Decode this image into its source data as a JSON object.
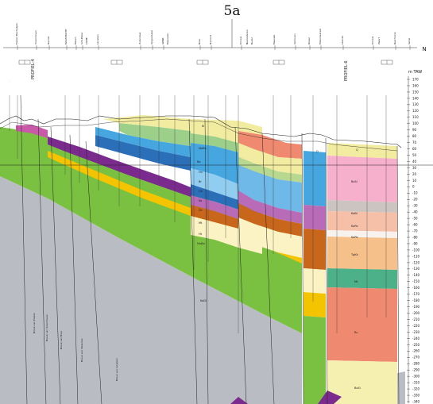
{
  "figure": {
    "title": "5a",
    "north_label": "N",
    "unit_label": "m TAW",
    "scale_ticks": [
      "170",
      "160",
      "150",
      "140",
      "130",
      "120",
      "110",
      "100",
      "90",
      "80",
      "70",
      "60",
      "50",
      "40",
      "30",
      "20",
      "10",
      "0",
      "-10",
      "-20",
      "-30",
      "-40",
      "-50",
      "-60",
      "-70",
      "-80",
      "-90",
      "-100",
      "-110",
      "-120",
      "-130",
      "-140",
      "-150",
      "-160",
      "-170",
      "-180",
      "-190",
      "-200",
      "-210",
      "-220",
      "-230",
      "-240",
      "-250",
      "-260",
      "-270",
      "-280",
      "-290",
      "-300",
      "-310",
      "-320",
      "-330",
      "-340"
    ],
    "top_labels": [
      "Eisden Mechelgen",
      "Vroenhoven",
      "Riemst",
      "MAASTRICHT",
      "Mesch",
      "Sint-Pieter",
      "LIXHE",
      "Lanaken",
      "Zutendaal",
      "Opglabbeek",
      "GENK",
      "Meeuwen",
      "Bree",
      "Hamont",
      "Kinrooi",
      "Neeroeteren",
      "Budel",
      "Maaseik",
      "Ophoven",
      "Dilsen",
      "Molenbeersel",
      "Leende",
      "Kinrooi",
      "Weert",
      "Roermond",
      "Venlo"
    ],
    "profile_labels": [
      "PROFIEL-4",
      "PROFIEL-6"
    ],
    "well_labels": [
      "Breuk van Eisden",
      "Breuk van Vroenhoven",
      "Breuk van Bree",
      "Breuk van Waterloo",
      "Breuk van Lanaken"
    ],
    "layer_codes": [
      "Kl",
      "MaRe",
      "Ba",
      "Hn",
      "Br",
      "Ge",
      "Ko",
      "Ze",
      "Mt",
      "Ht",
      "HoDo",
      "Ys",
      "KaBi",
      "KaPo",
      "Ru",
      "TgKk",
      "Ti",
      "BoSi",
      "Q",
      "RuBo",
      "KoDi"
    ]
  }
}
